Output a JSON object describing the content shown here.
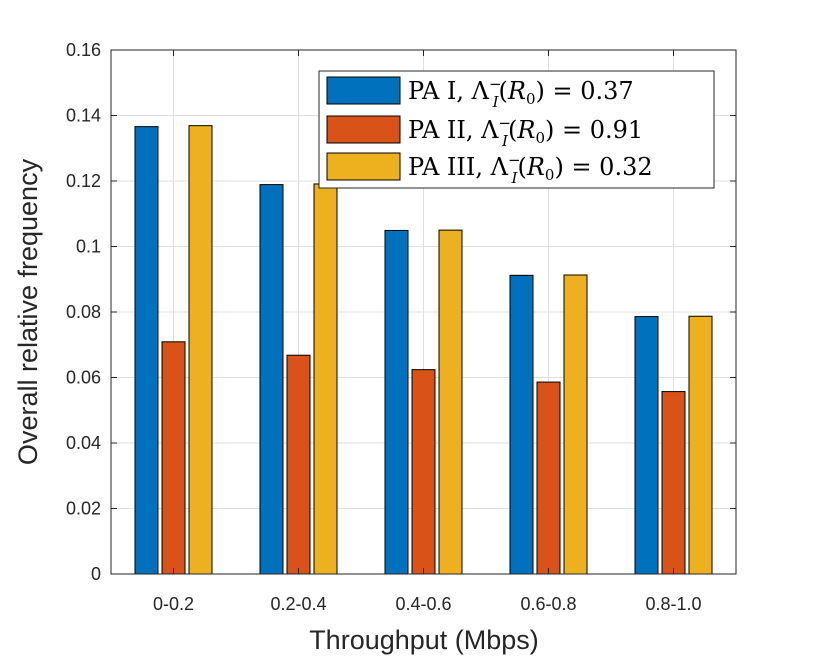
{
  "chart_data": {
    "type": "bar",
    "title": "",
    "xlabel": "Throughput (Mbps)",
    "ylabel": "Overall relative frequency",
    "categories": [
      "0-0.2",
      "0.2-0.4",
      "0.4-0.6",
      "0.6-0.8",
      "0.8-1.0"
    ],
    "ylim": [
      0,
      0.16
    ],
    "yticks": [
      0,
      0.02,
      0.04,
      0.06,
      0.08,
      0.1,
      0.12,
      0.14,
      0.16
    ],
    "ytick_labels": [
      "0",
      "0.02",
      "0.04",
      "0.06",
      "0.08",
      "0.1",
      "0.12",
      "0.14",
      "0.16"
    ],
    "grid": true,
    "legend_position": "top-right",
    "series": [
      {
        "name": "PA I",
        "legend_value": "0.37",
        "color": "#0072BD",
        "values": [
          0.1366,
          0.1189,
          0.1049,
          0.0912,
          0.0786
        ]
      },
      {
        "name": "PA II",
        "legend_value": "0.91",
        "color": "#D95319",
        "values": [
          0.0709,
          0.0668,
          0.0624,
          0.0586,
          0.0557
        ]
      },
      {
        "name": "PA III",
        "legend_value": "0.32",
        "color": "#EDB120",
        "values": [
          0.1369,
          0.1191,
          0.105,
          0.0913,
          0.0787
        ]
      }
    ]
  }
}
